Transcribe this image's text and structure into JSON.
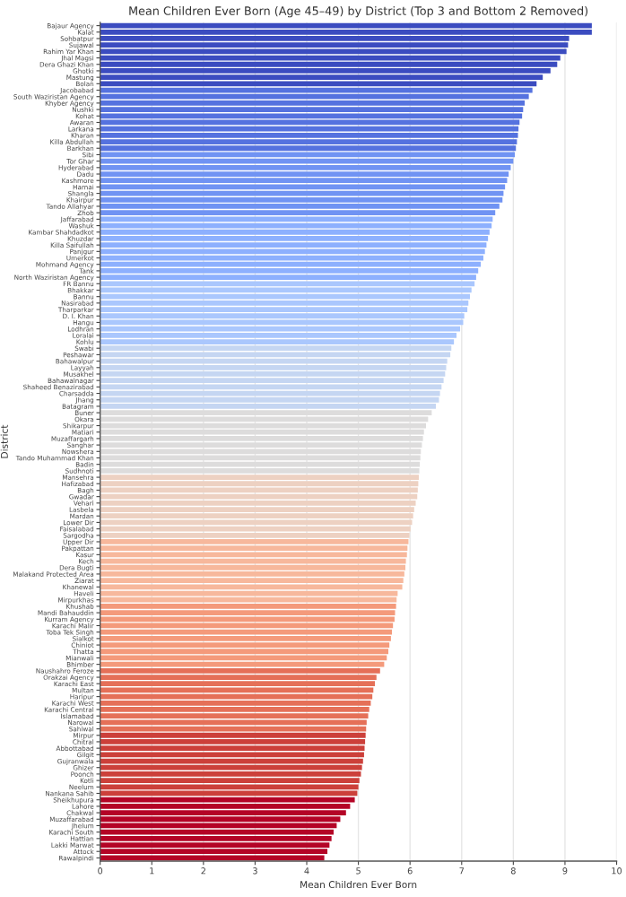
{
  "chart_data": {
    "type": "bar",
    "orientation": "horizontal",
    "title": "Mean Children Ever Born (Age 45–49) by District (Top 3 and Bottom 2 Removed)",
    "xlabel": "Mean Children Ever Born",
    "ylabel": "District",
    "xlim": [
      0,
      10
    ],
    "xticks": [
      0,
      1,
      2,
      3,
      4,
      5,
      6,
      7,
      8,
      9,
      10
    ],
    "grid": "x",
    "categories": [
      "Bajaur Agency",
      "Kalat",
      "Sohbatpur",
      "Sujawal",
      "Rahim Yar Khan",
      "Jhal Magsi",
      "Dera Ghazi Khan",
      "Ghotki",
      "Mastung",
      "Bolan",
      "Jacobabad",
      "South Waziristan Agency",
      "Khyber Agency",
      "Nushki",
      "Kohat",
      "Awaran",
      "Larkana",
      "Kharan",
      "Killa Abdullah",
      "Barkhan",
      "Sibi",
      "Tor Ghar",
      "Hyderabad",
      "Dadu",
      "Kashmore",
      "Harnai",
      "Shangla",
      "Khairpur",
      "Tando Allahyar",
      "Zhob",
      "Jaffarabad",
      "Washuk",
      "Kambar Shahdadkot",
      "Khuzdar",
      "Killa Saifullah",
      "Panjgur",
      "Umerkot",
      "Mohmand Agency",
      "Tank",
      "North Waziristan Agency",
      "FR Bannu",
      "Bhakkar",
      "Bannu",
      "Nasirabad",
      "Tharparkar",
      "D. I. Khan",
      "Hangu",
      "Lodhran",
      "Loralai",
      "Kohlu",
      "Swabi",
      "Peshawar",
      "Bahawalpur",
      "Layyah",
      "Musakhel",
      "Bahawalnagar",
      "Shaheed Benazirabad",
      "Charsadda",
      "Jhang",
      "Batagram",
      "Buner",
      "Okara",
      "Shikarpur",
      "Matiari",
      "Muzaffargarh",
      "Sanghar",
      "Nowshera",
      "Tando Muhammad Khan",
      "Badin",
      "Sudhnoti",
      "Mansehra",
      "Hafizabad",
      "Bagh",
      "Gwadar",
      "Vehari",
      "Lasbela",
      "Mardan",
      "Lower Dir",
      "Faisalabad",
      "Sargodha",
      "Upper Dir",
      "Pakpattan",
      "Kasur",
      "Kech",
      "Dera Bugti",
      "Malakand Protected Area",
      "Ziarat",
      "Khanewal",
      "Haveli",
      "Mirpurkhas",
      "Khushab",
      "Mandi Bahauddin",
      "Kurram Agency",
      "Karachi Malir",
      "Toba Tek Singh",
      "Sialkot",
      "Chiniot",
      "Thatta",
      "Mianwali",
      "Bhimber",
      "Naushahro Feroze",
      "Orakzai Agency",
      "Karachi East",
      "Multan",
      "Haripur",
      "Karachi West",
      "Karachi Central",
      "Islamabad",
      "Narowal",
      "Sahiwal",
      "Mirpur",
      "Chitral",
      "Abbottabad",
      "Gilgit",
      "Gujranwala",
      "Ghizer",
      "Poonch",
      "Kotli",
      "Neelum",
      "Nankana Sahib",
      "Sheikhupura",
      "Lahore",
      "Chakwal",
      "Muzaffarabad",
      "Jhelum",
      "Karachi South",
      "Hattian",
      "Lakki Marwat",
      "Attock",
      "Rawalpindi"
    ],
    "values": [
      9.52,
      9.52,
      9.08,
      9.06,
      9.03,
      8.91,
      8.85,
      8.72,
      8.57,
      8.45,
      8.37,
      8.3,
      8.22,
      8.19,
      8.17,
      8.12,
      8.1,
      8.09,
      8.07,
      8.05,
      8.03,
      8.0,
      7.95,
      7.91,
      7.88,
      7.84,
      7.81,
      7.79,
      7.73,
      7.65,
      7.6,
      7.58,
      7.54,
      7.51,
      7.48,
      7.45,
      7.42,
      7.37,
      7.32,
      7.28,
      7.25,
      7.19,
      7.16,
      7.13,
      7.11,
      7.05,
      7.03,
      6.97,
      6.9,
      6.85,
      6.8,
      6.78,
      6.72,
      6.7,
      6.68,
      6.65,
      6.61,
      6.58,
      6.56,
      6.5,
      6.42,
      6.35,
      6.31,
      6.27,
      6.25,
      6.23,
      6.21,
      6.2,
      6.19,
      6.18,
      6.17,
      6.16,
      6.15,
      6.14,
      6.11,
      6.08,
      6.06,
      6.04,
      6.01,
      5.99,
      5.97,
      5.95,
      5.94,
      5.92,
      5.91,
      5.89,
      5.87,
      5.85,
      5.76,
      5.74,
      5.73,
      5.71,
      5.7,
      5.67,
      5.65,
      5.63,
      5.6,
      5.58,
      5.55,
      5.5,
      5.42,
      5.35,
      5.32,
      5.29,
      5.27,
      5.24,
      5.21,
      5.19,
      5.16,
      5.15,
      5.14,
      5.13,
      5.12,
      5.11,
      5.09,
      5.07,
      5.05,
      5.02,
      5.0,
      4.98,
      4.93,
      4.84,
      4.76,
      4.65,
      4.58,
      4.52,
      4.48,
      4.44,
      4.4,
      4.34
    ],
    "colors": [
      "#3b4cc0",
      "#3b4cc0",
      "#3b4cc0",
      "#3b4cc0",
      "#3b4cc0",
      "#3b4cc0",
      "#3b4cc0",
      "#3b4cc0",
      "#3b4cc0",
      "#3b4cc0",
      "#5572df",
      "#5572df",
      "#5572df",
      "#5572df",
      "#5572df",
      "#5572df",
      "#5572df",
      "#5572df",
      "#5572df",
      "#5572df",
      "#7093f3",
      "#7093f3",
      "#7093f3",
      "#7093f3",
      "#7093f3",
      "#7093f3",
      "#7093f3",
      "#7093f3",
      "#7093f3",
      "#7093f3",
      "#8db0fe",
      "#8db0fe",
      "#8db0fe",
      "#8db0fe",
      "#8db0fe",
      "#8db0fe",
      "#8db0fe",
      "#8db0fe",
      "#8db0fe",
      "#8db0fe",
      "#aac7fd",
      "#aac7fd",
      "#aac7fd",
      "#aac7fd",
      "#aac7fd",
      "#aac7fd",
      "#aac7fd",
      "#aac7fd",
      "#aac7fd",
      "#aac7fd",
      "#c5d6f2",
      "#c5d6f2",
      "#c5d6f2",
      "#c5d6f2",
      "#c5d6f2",
      "#c5d6f2",
      "#c5d6f2",
      "#c5d6f2",
      "#c5d6f2",
      "#c5d6f2",
      "#dddcdc",
      "#dddcdc",
      "#dddcdc",
      "#dddcdc",
      "#dddcdc",
      "#dddcdc",
      "#dddcdc",
      "#dddcdc",
      "#dddcdc",
      "#dddcdc",
      "#edd1c2",
      "#edd1c2",
      "#edd1c2",
      "#edd1c2",
      "#edd1c2",
      "#edd1c2",
      "#edd1c2",
      "#edd1c2",
      "#edd1c2",
      "#edd1c2",
      "#f7b89c",
      "#f7b89c",
      "#f7b89c",
      "#f7b89c",
      "#f7b89c",
      "#f7b89c",
      "#f7b89c",
      "#f7b89c",
      "#f7b89c",
      "#f7b89c",
      "#f49a7b",
      "#f49a7b",
      "#f49a7b",
      "#f49a7b",
      "#f49a7b",
      "#f49a7b",
      "#f49a7b",
      "#f49a7b",
      "#f49a7b",
      "#f49a7b",
      "#e57058",
      "#e57058",
      "#e57058",
      "#e57058",
      "#e57058",
      "#e57058",
      "#e57058",
      "#e57058",
      "#e57058",
      "#e57058",
      "#cc403a",
      "#cc403a",
      "#cc403a",
      "#cc403a",
      "#cc403a",
      "#cc403a",
      "#cc403a",
      "#cc403a",
      "#cc403a",
      "#cc403a",
      "#b40426",
      "#b40426",
      "#b40426",
      "#b40426",
      "#b40426",
      "#b40426",
      "#b40426",
      "#b40426",
      "#b40426",
      "#b40426"
    ]
  }
}
